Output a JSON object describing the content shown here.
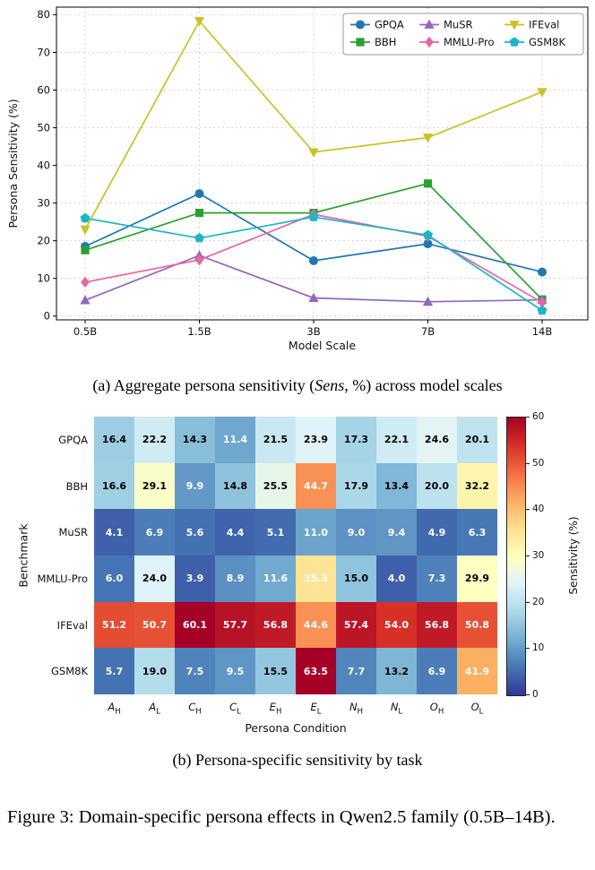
{
  "figure": {
    "caption_a_prefix": "(a) Aggregate persona sensitivity (",
    "caption_a_italic": "Sens",
    "caption_a_suffix": ", %) across model scales",
    "caption_b": "(b) Persona-specific sensitivity by task",
    "figure_caption": "Figure 3: Domain-specific persona effects in Qwen2.5 family (0.5B–14B)."
  },
  "chart_data": [
    {
      "type": "line",
      "title": "",
      "xlabel": "Model Scale",
      "ylabel": "Persona Sensitivity (%)",
      "categories": [
        "0.5B",
        "1.5B",
        "3B",
        "7B",
        "14B"
      ],
      "ylim": [
        0,
        80
      ],
      "yticks": [
        0,
        10,
        20,
        30,
        40,
        50,
        60,
        70,
        80
      ],
      "grid": true,
      "legend_position": "top-right",
      "series": [
        {
          "name": "GPQA",
          "color": "#1f77b4",
          "marker": "circle",
          "values": [
            18.5,
            32.5,
            14.7,
            19.2,
            11.7
          ]
        },
        {
          "name": "BBH",
          "color": "#2ca02c",
          "marker": "square",
          "values": [
            17.5,
            27.4,
            27.4,
            35.2,
            4.4
          ]
        },
        {
          "name": "MuSR",
          "color": "#9467bd",
          "marker": "triangle-up",
          "values": [
            4.2,
            16.1,
            4.8,
            3.8,
            4.3
          ]
        },
        {
          "name": "MMLU-Pro",
          "color": "#e666a6",
          "marker": "diamond",
          "values": [
            9.0,
            14.9,
            27.0,
            21.2,
            3.6
          ]
        },
        {
          "name": "IFEval",
          "color": "#c9c226",
          "marker": "triangle-down",
          "values": [
            23.0,
            78.3,
            43.5,
            47.4,
            59.5
          ]
        },
        {
          "name": "GSM8K",
          "color": "#1fb4c7",
          "marker": "pentagon",
          "values": [
            26.0,
            20.7,
            26.3,
            21.5,
            1.5
          ]
        }
      ]
    },
    {
      "type": "heatmap",
      "xlabel": "Persona Condition",
      "ylabel": "Benchmark",
      "rows": [
        "GPQA",
        "BBH",
        "MuSR",
        "MMLU-Pro",
        "IFEval",
        "GSM8K"
      ],
      "columns": [
        {
          "base": "A",
          "sub": "H"
        },
        {
          "base": "A",
          "sub": "L"
        },
        {
          "base": "C",
          "sub": "H"
        },
        {
          "base": "C",
          "sub": "L"
        },
        {
          "base": "E",
          "sub": "H"
        },
        {
          "base": "E",
          "sub": "L"
        },
        {
          "base": "N",
          "sub": "H"
        },
        {
          "base": "N",
          "sub": "L"
        },
        {
          "base": "O",
          "sub": "H"
        },
        {
          "base": "O",
          "sub": "L"
        }
      ],
      "values": [
        [
          16.4,
          22.2,
          14.3,
          11.4,
          21.5,
          23.9,
          17.3,
          22.1,
          24.6,
          20.1
        ],
        [
          16.6,
          29.1,
          9.9,
          14.8,
          25.5,
          44.7,
          17.9,
          13.4,
          20.0,
          32.2
        ],
        [
          4.1,
          6.9,
          5.6,
          4.4,
          5.1,
          11.0,
          9.0,
          9.4,
          4.9,
          6.3
        ],
        [
          6.0,
          24.0,
          3.9,
          8.9,
          11.6,
          35.3,
          15.0,
          4.0,
          7.3,
          29.9
        ],
        [
          51.2,
          50.7,
          60.1,
          57.7,
          56.8,
          44.6,
          57.4,
          54.0,
          56.8,
          50.8
        ],
        [
          5.7,
          19.0,
          7.5,
          9.5,
          15.5,
          63.5,
          7.7,
          13.2,
          6.9,
          41.9
        ]
      ],
      "colorbar": {
        "label": "Sensitivity (%)",
        "ticks": [
          0,
          10,
          20,
          30,
          40,
          50,
          60
        ],
        "vmin": 0,
        "vmax": 60,
        "colormap": [
          "#313695",
          "#4575b4",
          "#74add1",
          "#abd9e9",
          "#e0f3f8",
          "#ffffbf",
          "#fee090",
          "#fdae61",
          "#f46d43",
          "#d73027",
          "#a50026"
        ]
      }
    }
  ]
}
